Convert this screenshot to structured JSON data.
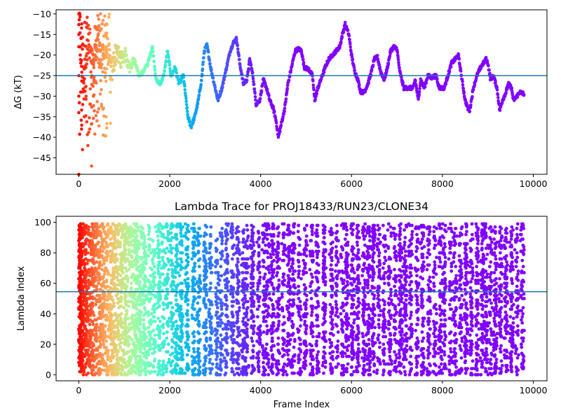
{
  "chart_data": [
    {
      "type": "scatter",
      "title": "",
      "xlabel": "",
      "ylabel": "ΔG (kT)",
      "xlim": [
        -500,
        10300
      ],
      "ylim": [
        -49,
        -9
      ],
      "xticks": [
        0,
        2000,
        4000,
        6000,
        8000,
        10000
      ],
      "yticks": [
        -45,
        -40,
        -35,
        -30,
        -25,
        -20,
        -15,
        -10
      ],
      "tick_labels_x": [
        "0",
        "2000",
        "4000",
        "6000",
        "8000",
        "10000"
      ],
      "tick_labels_y": [
        "−45",
        "−40",
        "−35",
        "−30",
        "−25",
        "−20",
        "−15",
        "−10"
      ],
      "hline": -25,
      "hline_color": "#1f77b4",
      "colormap": "rainbow (color reversed with frame index: red at start, purple at end)",
      "x_range_of_points": [
        0,
        9800
      ],
      "trace_points": [
        [
          0,
          -10
        ],
        [
          60,
          -22
        ],
        [
          120,
          -28
        ],
        [
          180,
          -15
        ],
        [
          260,
          -20
        ],
        [
          330,
          -26
        ],
        [
          420,
          -14
        ],
        [
          520,
          -22
        ],
        [
          620,
          -18
        ],
        [
          720,
          -24
        ],
        [
          820,
          -19
        ],
        [
          920,
          -21
        ],
        [
          1020,
          -20
        ],
        [
          1120,
          -23
        ],
        [
          1220,
          -21
        ],
        [
          1320,
          -25
        ],
        [
          1420,
          -24
        ],
        [
          1520,
          -22
        ],
        [
          1620,
          -18
        ],
        [
          1700,
          -26
        ],
        [
          1790,
          -27
        ],
        [
          1870,
          -25
        ],
        [
          1950,
          -19
        ],
        [
          2030,
          -25
        ],
        [
          2120,
          -23
        ],
        [
          2200,
          -27
        ],
        [
          2300,
          -25
        ],
        [
          2400,
          -35
        ],
        [
          2470,
          -37.5
        ],
        [
          2550,
          -35
        ],
        [
          2630,
          -31
        ],
        [
          2700,
          -26
        ],
        [
          2760,
          -19
        ],
        [
          2820,
          -17.5
        ],
        [
          2900,
          -23
        ],
        [
          2980,
          -27
        ],
        [
          3060,
          -31
        ],
        [
          3150,
          -28
        ],
        [
          3250,
          -23
        ],
        [
          3330,
          -19
        ],
        [
          3400,
          -17
        ],
        [
          3470,
          -16
        ],
        [
          3540,
          -22
        ],
        [
          3620,
          -27
        ],
        [
          3700,
          -26
        ],
        [
          3760,
          -21
        ],
        [
          3830,
          -25
        ],
        [
          3900,
          -32
        ],
        [
          3980,
          -31
        ],
        [
          4060,
          -26
        ],
        [
          4130,
          -28
        ],
        [
          4200,
          -31
        ],
        [
          4280,
          -33
        ],
        [
          4340,
          -36
        ],
        [
          4390,
          -40
        ],
        [
          4450,
          -37
        ],
        [
          4530,
          -33
        ],
        [
          4600,
          -27
        ],
        [
          4680,
          -23
        ],
        [
          4760,
          -19
        ],
        [
          4830,
          -18.5
        ],
        [
          4900,
          -19
        ],
        [
          4960,
          -23
        ],
        [
          5060,
          -23.5
        ],
        [
          5140,
          -25
        ],
        [
          5190,
          -31
        ],
        [
          5260,
          -28
        ],
        [
          5340,
          -25.5
        ],
        [
          5420,
          -23
        ],
        [
          5500,
          -21
        ],
        [
          5580,
          -20
        ],
        [
          5660,
          -19
        ],
        [
          5740,
          -18
        ],
        [
          5800,
          -15
        ],
        [
          5860,
          -12.5
        ],
        [
          5940,
          -15
        ],
        [
          6000,
          -20
        ],
        [
          6070,
          -24
        ],
        [
          6140,
          -26
        ],
        [
          6200,
          -29
        ],
        [
          6280,
          -29
        ],
        [
          6360,
          -27
        ],
        [
          6440,
          -24
        ],
        [
          6500,
          -21
        ],
        [
          6570,
          -20.5
        ],
        [
          6640,
          -24
        ],
        [
          6720,
          -26
        ],
        [
          6790,
          -23
        ],
        [
          6860,
          -19
        ],
        [
          6930,
          -18
        ],
        [
          7000,
          -18.5
        ],
        [
          7060,
          -24
        ],
        [
          7150,
          -28
        ],
        [
          7250,
          -28
        ],
        [
          7360,
          -28
        ],
        [
          7400,
          -26
        ],
        [
          7470,
          -31
        ],
        [
          7520,
          -26
        ],
        [
          7600,
          -28
        ],
        [
          7680,
          -25
        ],
        [
          7760,
          -25.5
        ],
        [
          7860,
          -25
        ],
        [
          7930,
          -28
        ],
        [
          8040,
          -28
        ],
        [
          8120,
          -25
        ],
        [
          8200,
          -22
        ],
        [
          8280,
          -21
        ],
        [
          8350,
          -20
        ],
        [
          8430,
          -26
        ],
        [
          8500,
          -31
        ],
        [
          8560,
          -33
        ],
        [
          8600,
          -33.5
        ],
        [
          8680,
          -28
        ],
        [
          8760,
          -25
        ],
        [
          8840,
          -23
        ],
        [
          8900,
          -22
        ],
        [
          8960,
          -21
        ],
        [
          9000,
          -22
        ],
        [
          9060,
          -26
        ],
        [
          9120,
          -25
        ],
        [
          9200,
          -28
        ],
        [
          9260,
          -33.5
        ],
        [
          9320,
          -31
        ],
        [
          9400,
          -29
        ],
        [
          9450,
          -27
        ],
        [
          9520,
          -28
        ],
        [
          9560,
          -31
        ],
        [
          9640,
          -30
        ],
        [
          9700,
          -29
        ],
        [
          9800,
          -29.5
        ]
      ],
      "early_spread": [
        [
          0,
          -10
        ],
        [
          0,
          -15
        ],
        [
          0,
          -18
        ],
        [
          0,
          -25
        ],
        [
          0,
          -30
        ],
        [
          0,
          -34
        ],
        [
          0,
          -49
        ],
        [
          30,
          -20
        ],
        [
          40,
          -29
        ],
        [
          60,
          -38
        ],
        [
          80,
          -43
        ],
        [
          120,
          -35
        ],
        [
          160,
          -30
        ],
        [
          200,
          -42
        ],
        [
          240,
          -38
        ],
        [
          280,
          -47
        ],
        [
          320,
          -30
        ],
        [
          400,
          -36
        ],
        [
          500,
          -32
        ],
        [
          600,
          -35
        ]
      ]
    },
    {
      "type": "scatter",
      "title": "Lambda Trace for PROJ18433/RUN23/CLONE34",
      "xlabel": "Frame Index",
      "ylabel": "Lambda Index",
      "xlim": [
        -500,
        10300
      ],
      "ylim": [
        -4,
        104
      ],
      "xticks": [
        0,
        2000,
        4000,
        6000,
        8000,
        10000
      ],
      "yticks": [
        0,
        20,
        40,
        60,
        80,
        100
      ],
      "tick_labels_x": [
        "0",
        "2000",
        "4000",
        "6000",
        "8000",
        "10000"
      ],
      "tick_labels_y": [
        "0",
        "20",
        "40",
        "60",
        "80",
        "100"
      ],
      "hline": 54.5,
      "hline_color": "#1f77b4",
      "lambda_range": [
        0,
        99
      ],
      "x_range_of_points": [
        0,
        9800
      ],
      "colormap": "rainbow (color reversed with frame index: red at start, purple at end)",
      "band_centers": [
        60,
        140,
        220,
        300,
        380,
        460,
        540,
        620,
        700,
        780,
        860,
        940,
        1020,
        1100,
        1180,
        1260,
        1350,
        1450,
        1560,
        1650,
        1760,
        1860,
        1950,
        2050,
        2150,
        2250,
        2380,
        2530,
        2640,
        2780,
        2900,
        3040,
        3130,
        3250,
        3380,
        3500,
        3620,
        3700,
        3820,
        3960,
        4080,
        4160,
        4260,
        4380,
        4500,
        4620,
        4720,
        4850,
        4980,
        5120,
        5250,
        5400,
        5560,
        5680,
        5800,
        5900,
        6020,
        6140,
        6280,
        6380,
        6480,
        6600,
        6720,
        6840,
        6960,
        7080,
        7180,
        7300,
        7440,
        7560,
        7700,
        7830,
        7950,
        8040,
        8180,
        8280,
        8400,
        8520,
        8640,
        8760,
        8880,
        8960,
        9060,
        9160,
        9280,
        9400,
        9520,
        9640,
        9760
      ]
    }
  ]
}
